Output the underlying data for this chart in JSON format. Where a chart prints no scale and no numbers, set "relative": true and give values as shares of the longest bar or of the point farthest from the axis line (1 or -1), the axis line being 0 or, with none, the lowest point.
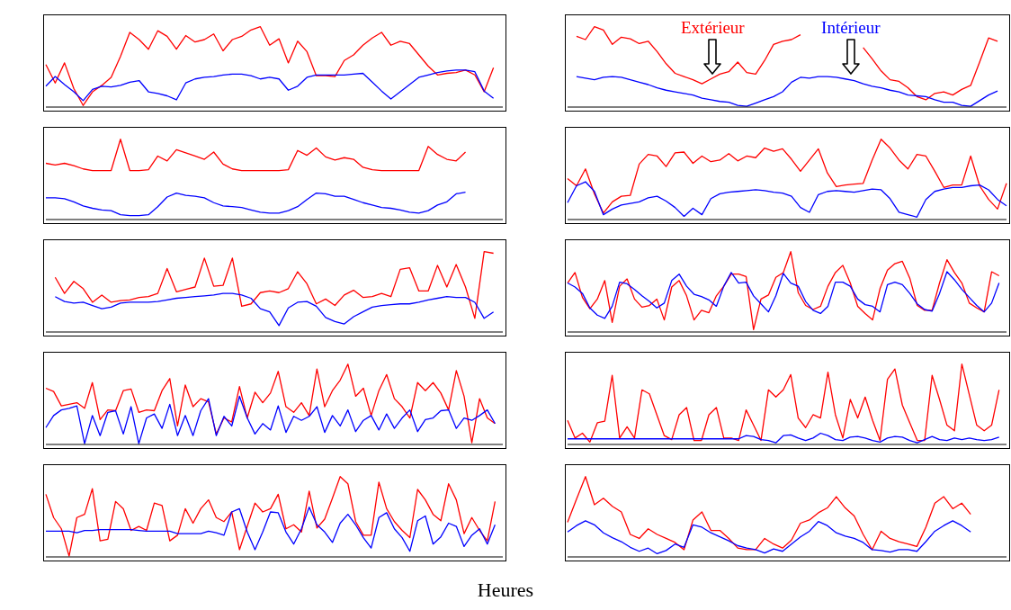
{
  "chart_data": [
    {
      "type": "line",
      "relative": true,
      "categories": [
        null,
        null,
        null,
        null,
        null,
        null,
        null,
        null,
        null,
        null,
        null,
        null,
        null,
        null,
        null,
        null,
        null,
        null,
        null,
        null,
        null,
        null,
        null,
        null,
        null,
        null,
        null,
        null,
        null,
        null,
        null,
        null,
        null,
        null,
        null,
        null,
        null,
        null,
        null,
        null,
        null,
        null,
        null,
        null,
        null,
        null,
        null,
        null,
        null,
        null
      ],
      "tick_labels": false,
      "series": [
        {
          "color": "#ff0000",
          "values": [
            0.53,
            0.3,
            0.55,
            0.23,
            0.02,
            0.19,
            0.27,
            0.37,
            0.63,
            0.93,
            0.84,
            0.72,
            0.95,
            0.88,
            0.72,
            0.89,
            0.81,
            0.84,
            0.91,
            0.7,
            0.84,
            0.88,
            0.96,
            1,
            0.77,
            0.85,
            0.55,
            0.82,
            0.69,
            0.39,
            0.39,
            0.38,
            0.58,
            0.65,
            0.77,
            0.86,
            0.93,
            0.77,
            0.82,
            0.79,
            0.65,
            0.51,
            0.4,
            0.42,
            0.43,
            0.46,
            0.4,
            0.19,
            0.49,
            null
          ]
        },
        {
          "color": "#0000ff",
          "values": [
            0.26,
            0.38,
            0.28,
            0.19,
            0.08,
            0.22,
            0.26,
            0.25,
            0.27,
            0.31,
            0.33,
            0.19,
            0.17,
            0.14,
            0.09,
            0.3,
            0.35,
            0.37,
            0.38,
            0.4,
            0.41,
            0.41,
            0.39,
            0.35,
            0.37,
            0.35,
            0.21,
            0.26,
            0.37,
            0.4,
            0.4,
            0.4,
            0.4,
            0.41,
            0.42,
            0.31,
            0.2,
            0.1,
            0.19,
            0.28,
            0.37,
            0.4,
            0.43,
            0.45,
            0.46,
            0.46,
            0.44,
            0.2,
            0.11,
            null
          ]
        }
      ]
    },
    {
      "type": "line",
      "relative": true,
      "categories": [
        null,
        null,
        null,
        null,
        null,
        null,
        null,
        null,
        null,
        null,
        null,
        null,
        null,
        null,
        null,
        null,
        null,
        null,
        null,
        null,
        null,
        null,
        null,
        null,
        null,
        null,
        null,
        null,
        null,
        null,
        null,
        null,
        null,
        null,
        null,
        null,
        null,
        null,
        null,
        null,
        null,
        null,
        null,
        null,
        null,
        null,
        null,
        null,
        null,
        null
      ],
      "tick_labels": false,
      "series": [
        {
          "name": "Extérieur",
          "color": "#ff0000",
          "values": [
            null,
            0.88,
            0.84,
            1,
            0.96,
            0.78,
            0.87,
            0.85,
            0.79,
            0.82,
            0.69,
            0.54,
            0.42,
            0.38,
            0.34,
            0.29,
            0.35,
            0.41,
            0.44,
            0.56,
            0.43,
            0.41,
            0.58,
            0.78,
            0.82,
            0.84,
            0.9,
            null,
            null,
            null,
            null,
            null,
            null,
            0.74,
            0.6,
            0.45,
            0.34,
            0.32,
            0.24,
            0.13,
            0.09,
            0.17,
            0.19,
            0.15,
            0.22,
            0.27,
            0.56,
            0.86,
            0.82,
            null
          ]
        },
        {
          "name": "Intérieur",
          "color": "#0000ff",
          "values": [
            null,
            0.38,
            0.36,
            0.34,
            0.37,
            0.38,
            0.37,
            0.34,
            0.31,
            0.28,
            0.24,
            0.21,
            0.19,
            0.17,
            0.15,
            0.11,
            0.09,
            0.07,
            0.06,
            0.02,
            0.01,
            0.05,
            0.09,
            0.13,
            0.19,
            0.31,
            0.37,
            0.36,
            0.38,
            0.38,
            0.37,
            0.35,
            0.33,
            0.29,
            0.26,
            0.24,
            0.21,
            0.19,
            0.15,
            0.14,
            0.13,
            0.09,
            0.06,
            0.06,
            0.02,
            0.01,
            0.08,
            0.15,
            0.2,
            null
          ]
        }
      ]
    },
    {
      "type": "line",
      "relative": true,
      "categories": [
        null,
        null,
        null,
        null,
        null,
        null,
        null,
        null,
        null,
        null,
        null,
        null,
        null,
        null,
        null,
        null,
        null,
        null,
        null,
        null,
        null,
        null,
        null,
        null,
        null,
        null,
        null,
        null,
        null,
        null,
        null,
        null,
        null,
        null,
        null,
        null,
        null,
        null,
        null,
        null,
        null,
        null,
        null,
        null,
        null,
        null,
        null,
        null,
        null,
        null
      ],
      "tick_labels": false,
      "series": [
        {
          "color": "#ff0000",
          "values": [
            0.7,
            0.68,
            0.7,
            0.67,
            0.63,
            0.61,
            0.61,
            0.61,
            1,
            0.61,
            0.61,
            0.62,
            0.79,
            0.73,
            0.87,
            0.83,
            0.79,
            0.75,
            0.84,
            0.69,
            0.63,
            0.61,
            0.61,
            0.61,
            0.61,
            0.61,
            0.62,
            0.86,
            0.8,
            0.89,
            0.78,
            0.74,
            0.77,
            0.75,
            0.65,
            0.62,
            0.61,
            0.61,
            0.61,
            0.61,
            0.61,
            0.91,
            0.81,
            0.75,
            0.73,
            0.84,
            null,
            null,
            null,
            null
          ]
        },
        {
          "color": "#0000ff",
          "values": [
            0.27,
            0.27,
            0.26,
            0.22,
            0.17,
            0.14,
            0.12,
            0.11,
            0.06,
            0.05,
            0.05,
            0.06,
            0.16,
            0.28,
            0.33,
            0.3,
            0.29,
            0.27,
            0.21,
            0.17,
            0.16,
            0.15,
            0.12,
            0.09,
            0.08,
            0.08,
            0.11,
            0.16,
            0.25,
            0.33,
            0.32,
            0.29,
            0.29,
            0.25,
            0.21,
            0.18,
            0.15,
            0.14,
            0.12,
            0.09,
            0.08,
            0.11,
            0.18,
            0.22,
            0.32,
            0.34,
            null,
            null,
            null,
            null
          ]
        }
      ]
    },
    {
      "type": "line",
      "relative": true,
      "categories": [
        null,
        null,
        null,
        null,
        null,
        null,
        null,
        null,
        null,
        null,
        null,
        null,
        null,
        null,
        null,
        null,
        null,
        null,
        null,
        null,
        null,
        null,
        null,
        null,
        null,
        null,
        null,
        null,
        null,
        null,
        null,
        null,
        null,
        null,
        null,
        null,
        null,
        null,
        null,
        null,
        null,
        null,
        null,
        null,
        null,
        null,
        null,
        null,
        null,
        null
      ],
      "tick_labels": false,
      "series": [
        {
          "color": "#ff0000",
          "values": [
            0.51,
            0.42,
            0.63,
            0.32,
            0.08,
            0.22,
            0.29,
            0.3,
            0.69,
            0.81,
            0.79,
            0.66,
            0.83,
            0.84,
            0.7,
            0.79,
            0.72,
            0.74,
            0.82,
            0.73,
            0.79,
            0.77,
            0.89,
            0.85,
            0.88,
            0.75,
            0.6,
            0.74,
            0.88,
            0.58,
            0.41,
            0.43,
            0.44,
            0.45,
            0.74,
            1,
            0.89,
            0.74,
            0.63,
            0.81,
            0.79,
            0.6,
            0.4,
            0.43,
            0.43,
            0.79,
            0.42,
            0.25,
            0.13,
            0.45
          ]
        },
        {
          "color": "#0000ff",
          "values": [
            0.21,
            0.42,
            0.47,
            0.35,
            0.06,
            0.13,
            0.18,
            0.2,
            0.22,
            0.27,
            0.29,
            0.23,
            0.15,
            0.04,
            0.14,
            0.06,
            0.26,
            0.32,
            0.34,
            0.35,
            0.36,
            0.37,
            0.36,
            0.34,
            0.33,
            0.29,
            0.15,
            0.09,
            0.31,
            0.35,
            0.36,
            0.35,
            0.34,
            0.36,
            0.38,
            0.37,
            0.26,
            0.09,
            0.06,
            0.03,
            0.25,
            0.35,
            0.38,
            0.4,
            0.4,
            0.42,
            0.43,
            0.37,
            0.25,
            0.17
          ]
        }
      ]
    },
    {
      "type": "line",
      "relative": true,
      "categories": [
        null,
        null,
        null,
        null,
        null,
        null,
        null,
        null,
        null,
        null,
        null,
        null,
        null,
        null,
        null,
        null,
        null,
        null,
        null,
        null,
        null,
        null,
        null,
        null,
        null,
        null,
        null,
        null,
        null,
        null,
        null,
        null,
        null,
        null,
        null,
        null,
        null,
        null,
        null,
        null,
        null,
        null,
        null,
        null,
        null,
        null,
        null,
        null,
        null,
        null
      ],
      "tick_labels": false,
      "series": [
        {
          "color": "#ff0000",
          "values": [
            null,
            0.68,
            0.48,
            0.63,
            0.54,
            0.37,
            0.46,
            0.37,
            0.39,
            0.4,
            0.43,
            0.44,
            0.48,
            0.79,
            0.5,
            0.53,
            0.56,
            0.92,
            0.57,
            0.58,
            0.92,
            0.32,
            0.35,
            0.49,
            0.51,
            0.49,
            0.54,
            0.75,
            0.6,
            0.35,
            0.41,
            0.33,
            0.46,
            0.52,
            0.43,
            0.44,
            0.48,
            0.44,
            0.78,
            0.8,
            0.51,
            0.51,
            0.83,
            0.56,
            0.84,
            0.56,
            0.17,
            1,
            0.98,
            null
          ]
        },
        {
          "color": "#0000ff",
          "values": [
            null,
            0.44,
            0.38,
            0.36,
            0.37,
            0.33,
            0.29,
            0.31,
            0.36,
            0.37,
            0.37,
            0.37,
            0.38,
            0.4,
            0.42,
            0.43,
            0.44,
            0.45,
            0.46,
            0.48,
            0.48,
            0.46,
            0.42,
            0.29,
            0.25,
            0.08,
            0.3,
            0.37,
            0.38,
            0.32,
            0.18,
            0.13,
            0.1,
            0.19,
            0.25,
            0.31,
            0.33,
            0.34,
            0.35,
            0.35,
            0.37,
            0.4,
            0.42,
            0.44,
            0.43,
            0.43,
            0.37,
            0.17,
            0.25,
            null
          ]
        }
      ]
    },
    {
      "type": "line",
      "relative": true,
      "categories": [
        null,
        null,
        null,
        null,
        null,
        null,
        null,
        null,
        null,
        null,
        null,
        null,
        null,
        null,
        null,
        null,
        null,
        null,
        null,
        null,
        null,
        null,
        null,
        null,
        null,
        null,
        null,
        null,
        null,
        null,
        null,
        null,
        null,
        null,
        null,
        null,
        null,
        null,
        null,
        null,
        null,
        null,
        null,
        null,
        null,
        null,
        null,
        null,
        null,
        null,
        null,
        null,
        null,
        null,
        null,
        null,
        null,
        null,
        null,
        null
      ],
      "tick_labels": false,
      "series": [
        {
          "color": "#ff0000",
          "values": [
            0.61,
            0.74,
            0.43,
            0.29,
            0.41,
            0.64,
            0.12,
            0.57,
            0.66,
            0.41,
            0.31,
            0.33,
            0.41,
            0.15,
            0.56,
            0.64,
            0.45,
            0.15,
            0.27,
            0.24,
            0.45,
            0.57,
            0.72,
            0.72,
            0.69,
            0.03,
            0.41,
            0.46,
            0.68,
            0.74,
            1,
            0.49,
            0.33,
            0.28,
            0.32,
            0.57,
            0.74,
            0.83,
            0.61,
            0.32,
            0.23,
            0.15,
            0.54,
            0.77,
            0.85,
            0.88,
            0.67,
            0.33,
            0.27,
            0.27,
            0.61,
            0.9,
            0.74,
            0.61,
            0.36,
            0.3,
            0.25,
            0.75,
            0.7,
            null
          ]
        },
        {
          "color": "#0000ff",
          "values": [
            0.61,
            0.56,
            0.48,
            0.3,
            0.21,
            0.17,
            0.32,
            0.62,
            0.6,
            0.53,
            0.45,
            0.38,
            0.3,
            0.36,
            0.64,
            0.72,
            0.57,
            0.47,
            0.44,
            0.4,
            0.32,
            0.57,
            0.74,
            0.61,
            0.62,
            0.45,
            0.35,
            0.25,
            0.45,
            0.73,
            0.61,
            0.57,
            0.38,
            0.27,
            0.23,
            0.32,
            0.62,
            0.62,
            0.57,
            0.41,
            0.34,
            0.32,
            0.25,
            0.59,
            0.62,
            0.59,
            0.48,
            0.35,
            0.28,
            0.26,
            0.48,
            0.75,
            0.65,
            0.53,
            0.43,
            0.33,
            0.25,
            0.36,
            0.61,
            null
          ]
        }
      ]
    },
    {
      "type": "line",
      "relative": true,
      "categories": [
        null,
        null,
        null,
        null,
        null,
        null,
        null,
        null,
        null,
        null,
        null,
        null,
        null,
        null,
        null,
        null,
        null,
        null,
        null,
        null,
        null,
        null,
        null,
        null,
        null,
        null,
        null,
        null,
        null,
        null,
        null,
        null,
        null,
        null,
        null,
        null,
        null,
        null,
        null,
        null,
        null,
        null,
        null,
        null,
        null,
        null,
        null,
        null,
        null,
        null,
        null,
        null,
        null,
        null,
        null,
        null,
        null,
        null,
        null,
        null
      ],
      "tick_labels": false,
      "series": [
        {
          "color": "#ff0000",
          "values": [
            0.7,
            0.66,
            0.48,
            0.5,
            0.52,
            0.45,
            0.77,
            0.31,
            0.43,
            0.42,
            0.67,
            0.69,
            0.4,
            0.43,
            0.42,
            0.67,
            0.82,
            0.23,
            0.74,
            0.47,
            0.57,
            0.53,
            0.13,
            0.33,
            0.28,
            0.72,
            0.33,
            0.65,
            0.52,
            0.64,
            0.91,
            0.47,
            0.4,
            0.52,
            0.36,
            0.94,
            0.47,
            0.67,
            0.8,
            1,
            0.6,
            0.7,
            0.36,
            0.67,
            0.87,
            0.57,
            0.47,
            0.33,
            0.77,
            0.67,
            0.77,
            0.64,
            0.43,
            0.92,
            0.6,
            0.02,
            0.57,
            0.33,
            0.26,
            null
          ]
        },
        {
          "color": "#0000ff",
          "values": [
            0.21,
            0.36,
            0.43,
            0.45,
            0.48,
            0.01,
            0.36,
            0.11,
            0.4,
            0.42,
            0.13,
            0.47,
            0.01,
            0.33,
            0.38,
            0.2,
            0.5,
            0.11,
            0.36,
            0.11,
            0.42,
            0.57,
            0.11,
            0.35,
            0.23,
            0.6,
            0.33,
            0.13,
            0.26,
            0.18,
            0.48,
            0.15,
            0.35,
            0.3,
            0.35,
            0.47,
            0.15,
            0.36,
            0.23,
            0.43,
            0.16,
            0.3,
            0.36,
            0.18,
            0.38,
            0.2,
            0.33,
            0.43,
            0.16,
            0.31,
            0.33,
            0.42,
            0.43,
            0.2,
            0.33,
            0.3,
            0.36,
            0.43,
            0.26,
            null
          ]
        }
      ]
    },
    {
      "type": "line",
      "relative": true,
      "categories": [
        null,
        null,
        null,
        null,
        null,
        null,
        null,
        null,
        null,
        null,
        null,
        null,
        null,
        null,
        null,
        null,
        null,
        null,
        null,
        null,
        null,
        null,
        null,
        null,
        null,
        null,
        null,
        null,
        null,
        null,
        null,
        null,
        null,
        null,
        null,
        null,
        null,
        null,
        null,
        null,
        null,
        null,
        null,
        null,
        null,
        null,
        null,
        null,
        null,
        null,
        null,
        null,
        null,
        null,
        null,
        null,
        null,
        null,
        null,
        null
      ],
      "tick_labels": false,
      "series": [
        {
          "color": "#ff0000",
          "values": [
            0.3,
            0.08,
            0.14,
            0.03,
            0.27,
            0.29,
            0.86,
            0.08,
            0.22,
            0.08,
            0.68,
            0.63,
            0.37,
            0.11,
            0.06,
            0.37,
            0.46,
            0.05,
            0.05,
            0.37,
            0.46,
            0.08,
            0.08,
            0.05,
            0.43,
            0.24,
            0.05,
            0.68,
            0.59,
            0.68,
            0.87,
            0.33,
            0.21,
            0.37,
            0.33,
            0.9,
            0.37,
            0.08,
            0.56,
            0.33,
            0.59,
            0.3,
            0.05,
            0.81,
            0.94,
            0.49,
            0.27,
            0.05,
            0.05,
            0.86,
            0.56,
            0.24,
            0.17,
            1,
            0.62,
            0.24,
            0.17,
            0.24,
            0.68,
            null
          ]
        },
        {
          "color": "#0000ff",
          "values": [
            0.07,
            0.07,
            0.07,
            0.07,
            0.07,
            0.07,
            0.07,
            0.07,
            0.07,
            0.07,
            0.07,
            0.07,
            0.07,
            0.07,
            0.07,
            0.07,
            0.07,
            0.07,
            0.07,
            0.07,
            0.07,
            0.07,
            0.07,
            0.07,
            0.11,
            0.1,
            0.06,
            0.05,
            0.02,
            0.11,
            0.12,
            0.08,
            0.05,
            0.08,
            0.14,
            0.11,
            0.06,
            0.05,
            0.09,
            0.1,
            0.08,
            0.05,
            0.03,
            0.08,
            0.1,
            0.09,
            0.05,
            0.02,
            0.06,
            0.1,
            0.06,
            0.05,
            0.08,
            0.06,
            0.08,
            0.06,
            0.05,
            0.06,
            0.09,
            null
          ]
        }
      ]
    },
    {
      "type": "line",
      "relative": true,
      "xlabel": "Heures",
      "categories": [
        null,
        null,
        null,
        null,
        null,
        null,
        null,
        null,
        null,
        null,
        null,
        null,
        null,
        null,
        null,
        null,
        null,
        null,
        null,
        null,
        null,
        null,
        null,
        null,
        null,
        null,
        null,
        null,
        null,
        null,
        null,
        null,
        null,
        null,
        null,
        null,
        null,
        null,
        null,
        null,
        null,
        null,
        null,
        null,
        null,
        null,
        null,
        null,
        null,
        null,
        null,
        null,
        null,
        null,
        null,
        null,
        null,
        null,
        null,
        null
      ],
      "tick_labels": false,
      "series": [
        {
          "color": "#ff0000",
          "values": [
            0.78,
            0.49,
            0.35,
            0.01,
            0.49,
            0.53,
            0.85,
            0.2,
            0.22,
            0.69,
            0.6,
            0.33,
            0.38,
            0.33,
            0.67,
            0.64,
            0.2,
            0.27,
            0.6,
            0.42,
            0.6,
            0.71,
            0.49,
            0.44,
            0.56,
            0.09,
            0.38,
            0.67,
            0.56,
            0.6,
            0.78,
            0.35,
            0.4,
            0.31,
            0.82,
            0.36,
            0.47,
            0.73,
            1,
            0.91,
            0.44,
            0.27,
            0.27,
            0.93,
            0.6,
            0.44,
            0.33,
            0.24,
            0.84,
            0.71,
            0.53,
            0.45,
            0.91,
            0.71,
            0.29,
            0.49,
            0.33,
            0.2,
            0.69,
            null
          ]
        },
        {
          "color": "#0000ff",
          "values": [
            0.32,
            0.32,
            0.32,
            0.32,
            0.3,
            0.33,
            0.33,
            0.34,
            0.34,
            0.34,
            0.34,
            0.34,
            0.33,
            0.32,
            0.32,
            0.32,
            0.32,
            0.29,
            0.29,
            0.29,
            0.29,
            0.32,
            0.3,
            0.27,
            0.56,
            0.6,
            0.31,
            0.09,
            0.31,
            0.56,
            0.55,
            0.31,
            0.16,
            0.35,
            0.62,
            0.4,
            0.31,
            0.18,
            0.42,
            0.53,
            0.4,
            0.24,
            0.11,
            0.49,
            0.55,
            0.35,
            0.24,
            0.07,
            0.45,
            0.51,
            0.16,
            0.25,
            0.42,
            0.38,
            0.13,
            0.27,
            0.35,
            0.16,
            0.4,
            null
          ]
        }
      ]
    },
    {
      "type": "line",
      "relative": true,
      "categories": [
        null,
        null,
        null,
        null,
        null,
        null,
        null,
        null,
        null,
        null,
        null,
        null,
        null,
        null,
        null,
        null,
        null,
        null,
        null,
        null,
        null,
        null,
        null,
        null,
        null,
        null,
        null,
        null,
        null,
        null,
        null,
        null,
        null,
        null,
        null,
        null,
        null,
        null,
        null,
        null,
        null,
        null,
        null,
        null,
        null,
        null,
        null,
        null,
        null,
        null
      ],
      "tick_labels": false,
      "series": [
        {
          "color": "#ff0000",
          "values": [
            0.43,
            0.72,
            1,
            0.65,
            0.73,
            0.63,
            0.56,
            0.28,
            0.23,
            0.35,
            0.28,
            0.23,
            0.18,
            0.09,
            0.46,
            0.56,
            0.33,
            0.33,
            0.23,
            0.11,
            0.09,
            0.09,
            0.23,
            0.16,
            0.11,
            0.21,
            0.42,
            0.46,
            0.55,
            0.61,
            0.75,
            0.61,
            0.51,
            0.28,
            0.09,
            0.32,
            0.23,
            0.19,
            0.16,
            0.13,
            0.37,
            0.67,
            0.75,
            0.6,
            0.67,
            0.53,
            null,
            null,
            null,
            null
          ]
        },
        {
          "color": "#0000ff",
          "values": [
            0.31,
            0.39,
            0.45,
            0.4,
            0.3,
            0.24,
            0.19,
            0.12,
            0.07,
            0.11,
            0.04,
            0.08,
            0.16,
            0.12,
            0.4,
            0.37,
            0.3,
            0.25,
            0.2,
            0.14,
            0.11,
            0.09,
            0.05,
            0.1,
            0.07,
            0.16,
            0.25,
            0.32,
            0.44,
            0.39,
            0.3,
            0.26,
            0.23,
            0.18,
            0.09,
            0.08,
            0.06,
            0.09,
            0.09,
            0.07,
            0.19,
            0.32,
            0.39,
            0.45,
            0.39,
            0.31,
            null,
            null,
            null,
            null
          ]
        }
      ]
    }
  ]
}
